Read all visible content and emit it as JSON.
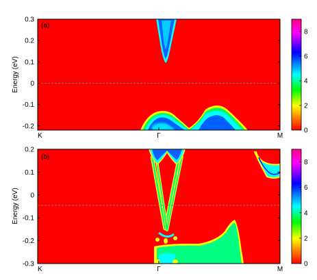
{
  "chart_data": [
    {
      "type": "heatmap",
      "panel_label": "(a)",
      "ylabel": "Energy (eV)",
      "ylim": [
        -0.22,
        0.3
      ],
      "yticks": [
        {
          "value": 0.3,
          "label": "0.3"
        },
        {
          "value": 0.2,
          "label": "0.2"
        },
        {
          "value": 0.1,
          "label": "0.1"
        },
        {
          "value": 0,
          "label": "0"
        },
        {
          "value": -0.1,
          "label": "-0.1"
        },
        {
          "value": -0.2,
          "label": "-0.2"
        }
      ],
      "xticks": [
        {
          "position": 0,
          "label": "K"
        },
        {
          "position": 0.5,
          "label": "Γ"
        },
        {
          "position": 1,
          "label": "M"
        }
      ],
      "fermi_level": 0,
      "background_value": 0,
      "colorbar": {
        "min": 0,
        "max": 9,
        "ticks": [
          {
            "value": 0,
            "label": "0"
          },
          {
            "value": 2,
            "label": "2"
          },
          {
            "value": 4,
            "label": "4"
          },
          {
            "value": 6,
            "label": "6"
          },
          {
            "value": 8,
            "label": "8"
          }
        ]
      }
    },
    {
      "type": "heatmap",
      "panel_label": "(b)",
      "ylabel": "Energy (eV)",
      "ylim": [
        -0.3,
        0.2
      ],
      "yticks": [
        {
          "value": 0.2,
          "label": "0.2"
        },
        {
          "value": 0.1,
          "label": "0.1"
        },
        {
          "value": 0,
          "label": "0"
        },
        {
          "value": -0.1,
          "label": "-0.1"
        },
        {
          "value": -0.2,
          "label": "-0.2"
        },
        {
          "value": -0.3,
          "label": "-0.3"
        }
      ],
      "xticks": [
        {
          "position": 0,
          "label": "K"
        },
        {
          "position": 0.5,
          "label": "Γ"
        },
        {
          "position": 1,
          "label": "M"
        }
      ],
      "fermi_level": -0.045,
      "background_value": 0,
      "colorbar": {
        "min": 0,
        "max": 9,
        "ticks": [
          {
            "value": 0,
            "label": "0"
          },
          {
            "value": 2,
            "label": "2"
          },
          {
            "value": 4,
            "label": "4"
          },
          {
            "value": 6,
            "label": "6"
          },
          {
            "value": 8,
            "label": "8"
          }
        ]
      }
    }
  ],
  "colormap": [
    "#ff0000",
    "#ff8000",
    "#ffff00",
    "#00ff00",
    "#00ffff",
    "#0000ff",
    "#ff00ff"
  ]
}
